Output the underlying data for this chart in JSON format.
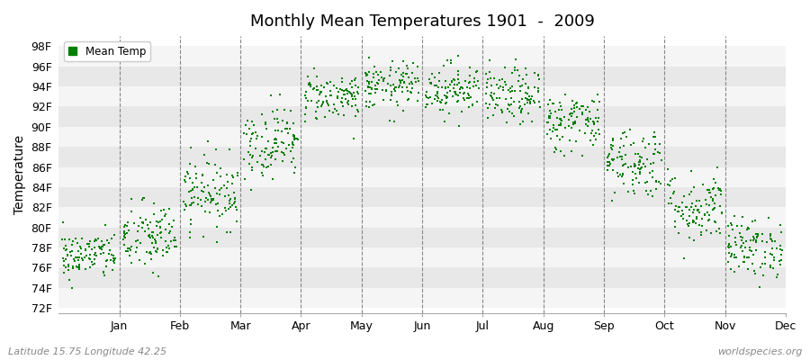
{
  "title": "Monthly Mean Temperatures 1901  -  2009",
  "ylabel": "Temperature",
  "xlabel_months": [
    "Jan",
    "Feb",
    "Mar",
    "Apr",
    "May",
    "Jun",
    "Jul",
    "Aug",
    "Sep",
    "Oct",
    "Nov",
    "Dec"
  ],
  "ytick_labels": [
    "72F",
    "74F",
    "76F",
    "78F",
    "80F",
    "82F",
    "84F",
    "86F",
    "88F",
    "90F",
    "92F",
    "94F",
    "96F",
    "98F"
  ],
  "ytick_values": [
    72,
    74,
    76,
    78,
    80,
    82,
    84,
    86,
    88,
    90,
    92,
    94,
    96,
    98
  ],
  "ylim": [
    71.5,
    99.0
  ],
  "xlim": [
    0,
    12
  ],
  "dot_color": "#008000",
  "legend_label": "Mean Temp",
  "bg_color": "#ffffff",
  "band_color_light": "#f5f5f5",
  "band_color_dark": "#e8e8e8",
  "footnote_left": "Latitude 15.75 Longitude 42.25",
  "footnote_right": "worldspecies.org",
  "monthly_means": [
    77.2,
    79.0,
    83.5,
    88.5,
    93.0,
    94.0,
    93.8,
    93.0,
    90.5,
    86.5,
    82.0,
    78.0
  ],
  "monthly_stds": [
    1.2,
    1.8,
    1.8,
    1.8,
    1.2,
    1.2,
    1.3,
    1.4,
    1.5,
    1.8,
    1.8,
    1.5
  ],
  "n_years": 109,
  "dot_size": 3,
  "dot_marker": "s"
}
